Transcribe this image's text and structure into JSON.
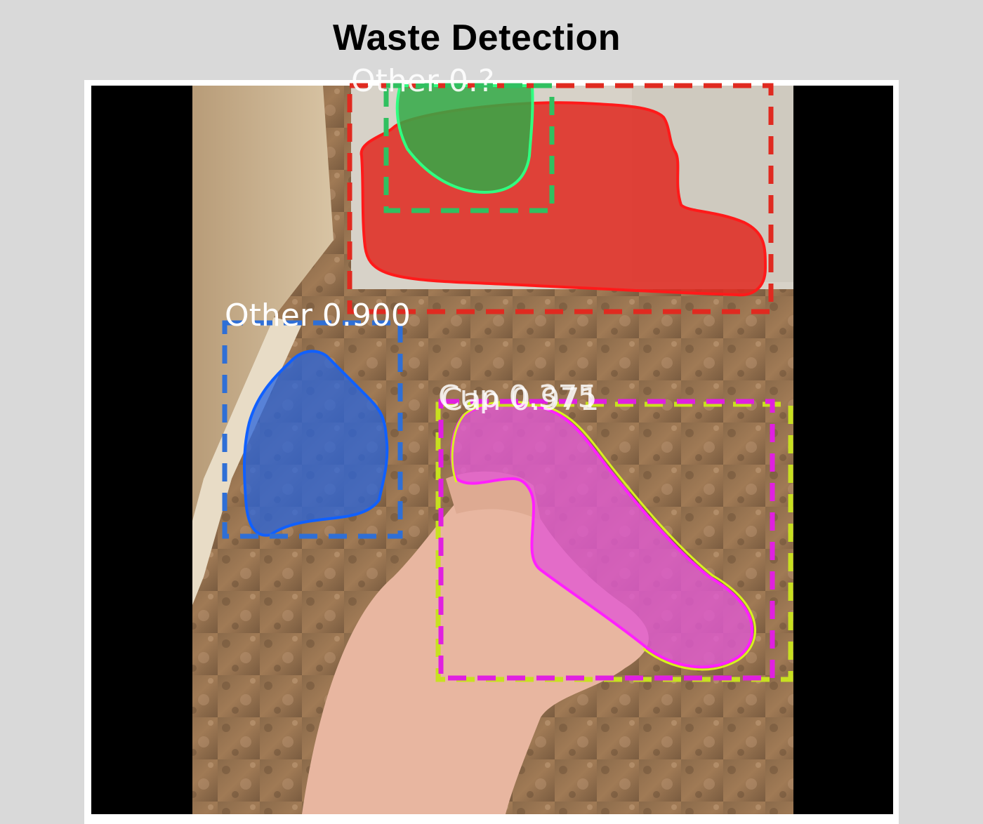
{
  "page": {
    "title": "Waste Detection"
  },
  "detections": [
    {
      "label": "Other 0.900",
      "class": "Other",
      "score": 0.9,
      "color": "#2f6fd6"
    },
    {
      "label": "Can 0.971",
      "class": "Can",
      "score": 0.971,
      "color": "#e020e0"
    },
    {
      "label": "Cup 0.375",
      "class": "Cup",
      "score": 0.375,
      "color": "#c8e020"
    },
    {
      "label": "Other 0.?",
      "class": "Other",
      "score": null,
      "color": "#e03020"
    },
    {
      "label": "",
      "class": "",
      "score": null,
      "color": "#30c060"
    }
  ],
  "colors": {
    "background": "#d9d9d9",
    "frame": "#ffffff",
    "letterbox": "#000000"
  }
}
